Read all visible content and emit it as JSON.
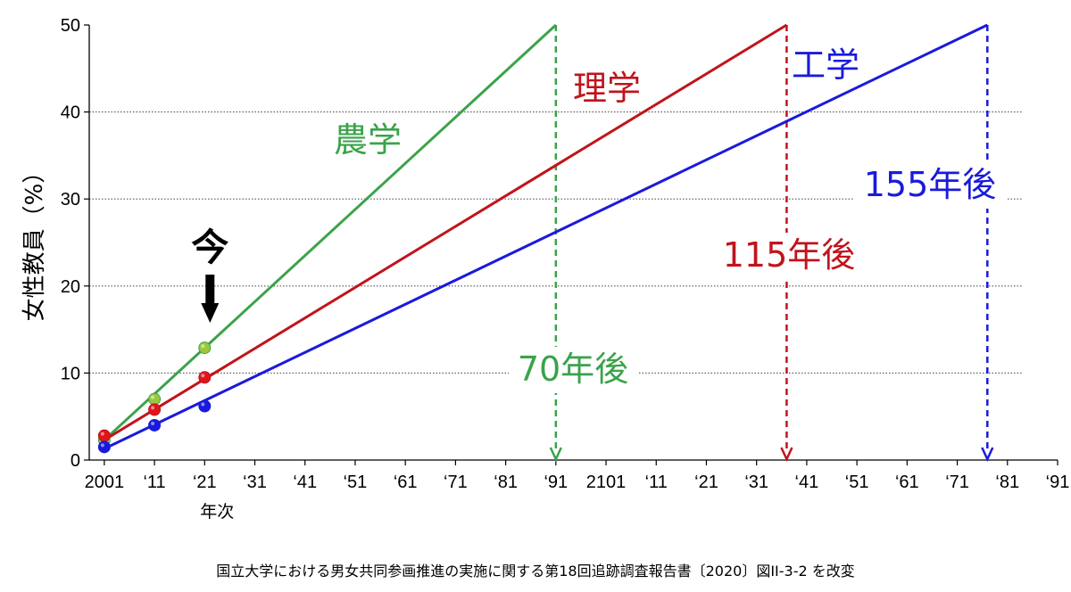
{
  "chart_data": {
    "type": "line",
    "ylabel": "女性教員（%）",
    "xlabel": "年次",
    "ylim": [
      0,
      50
    ],
    "xlim": [
      1998,
      2191
    ],
    "yticks": [
      0,
      10,
      20,
      30,
      40,
      50
    ],
    "ytick_labels": [
      "0",
      "10",
      "20",
      "30",
      "40",
      "50"
    ],
    "xticks": [
      2001,
      2011,
      2021,
      2031,
      2041,
      2051,
      2061,
      2071,
      2081,
      2091,
      2101,
      2111,
      2121,
      2131,
      2141,
      2151,
      2161,
      2171,
      2181,
      2191
    ],
    "xtick_labels": [
      "2001",
      "‘11",
      "‘21",
      "‘31",
      "‘41",
      "‘51",
      "‘61",
      "‘71",
      "‘81",
      "‘91",
      "2101",
      "‘11",
      "‘21",
      "‘31",
      "‘41",
      "‘51",
      "‘61",
      "‘71",
      "‘81",
      "‘91"
    ],
    "grid": "horizontal-dotted",
    "series": [
      {
        "name": "農学",
        "color": "#3aa34a",
        "marker_color": "#9ac83c",
        "points": [
          {
            "x": 2001,
            "y": 2.3
          },
          {
            "x": 2011,
            "y": 7.0
          },
          {
            "x": 2021,
            "y": 12.9
          }
        ],
        "trend": [
          {
            "x": 2001,
            "y": 2.3
          },
          {
            "x": 2091,
            "y": 50
          }
        ],
        "projection_year": 2091,
        "projection_label": "70年後"
      },
      {
        "name": "理学",
        "color": "#c0141c",
        "marker_color": "#e0141c",
        "points": [
          {
            "x": 2001,
            "y": 2.8
          },
          {
            "x": 2011,
            "y": 5.8
          },
          {
            "x": 2021,
            "y": 9.5
          }
        ],
        "trend": [
          {
            "x": 2001,
            "y": 2.3
          },
          {
            "x": 2137,
            "y": 50
          }
        ],
        "projection_year": 2137,
        "projection_label": "115年後"
      },
      {
        "name": "工学",
        "color": "#1a1adc",
        "marker_color": "#1a1adc",
        "points": [
          {
            "x": 2001,
            "y": 1.5
          },
          {
            "x": 2011,
            "y": 4.0
          },
          {
            "x": 2021,
            "y": 6.2
          }
        ],
        "trend": [
          {
            "x": 2001,
            "y": 1.3
          },
          {
            "x": 2177,
            "y": 50
          }
        ],
        "projection_year": 2177,
        "projection_label": "155年後"
      }
    ],
    "annotations": {
      "now_label": "今",
      "now_year": 2021
    }
  },
  "caption": "国立大学における男女共同参画推進の実施に関する第18回追跡調査報告書〔2020〕図II-3-2 を改変"
}
